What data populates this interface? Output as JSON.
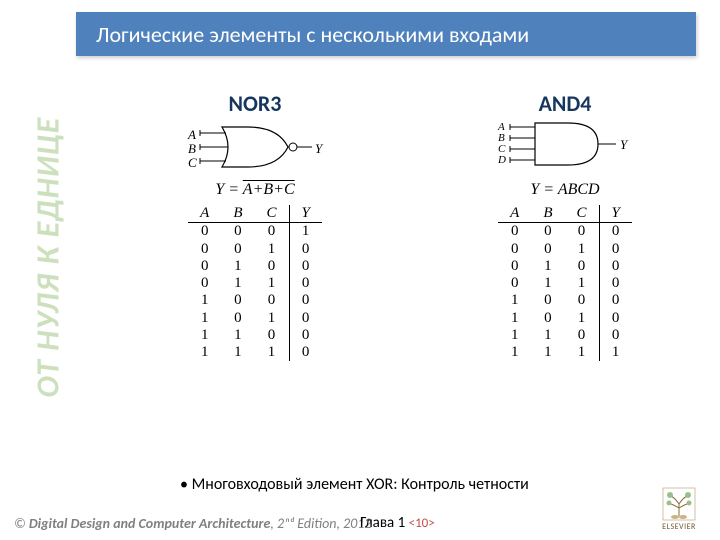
{
  "colors": {
    "header_bg": "#4f81bd",
    "title_blue": "#17365d",
    "side_green": "#cde0bd",
    "page_red": "#c0504d"
  },
  "side_text": "ОТ НУЛЯ К ЕДНИЦЕ",
  "header": "Логические элементы с несколькими входами",
  "nor3": {
    "title": "NOR3",
    "inputs": [
      "A",
      "B",
      "C"
    ],
    "output": "Y",
    "eq_prefix": "Y = ",
    "eq_over": "A+B+C",
    "headers": [
      "A",
      "B",
      "C",
      "Y"
    ],
    "rows": [
      [
        "0",
        "0",
        "0",
        "1"
      ],
      [
        "0",
        "0",
        "1",
        "0"
      ],
      [
        "0",
        "1",
        "0",
        "0"
      ],
      [
        "0",
        "1",
        "1",
        "0"
      ],
      [
        "1",
        "0",
        "0",
        "0"
      ],
      [
        "1",
        "0",
        "1",
        "0"
      ],
      [
        "1",
        "1",
        "0",
        "0"
      ],
      [
        "1",
        "1",
        "1",
        "0"
      ]
    ]
  },
  "and4": {
    "title": "AND4",
    "inputs": [
      "A",
      "B",
      "C",
      "D"
    ],
    "output": "Y",
    "equation": "Y = ABCD",
    "headers": [
      "A",
      "B",
      "C",
      "Y"
    ],
    "rows": [
      [
        "0",
        "0",
        "0",
        "0"
      ],
      [
        "0",
        "0",
        "1",
        "0"
      ],
      [
        "0",
        "1",
        "0",
        "0"
      ],
      [
        "0",
        "1",
        "1",
        "0"
      ],
      [
        "1",
        "0",
        "0",
        "0"
      ],
      [
        "1",
        "0",
        "1",
        "0"
      ],
      [
        "1",
        "1",
        "0",
        "0"
      ],
      [
        "1",
        "1",
        "1",
        "1"
      ]
    ]
  },
  "bullet": "Многовходовый элемент  XOR: Контроль четности",
  "footer": {
    "book": "Digital Design and Computer Architecture",
    "edition": ", 2ⁿᵈ Edition, 2012",
    "chapter": "Глава 1 ",
    "page": "<10>",
    "publisher": "ELSEVIER"
  }
}
